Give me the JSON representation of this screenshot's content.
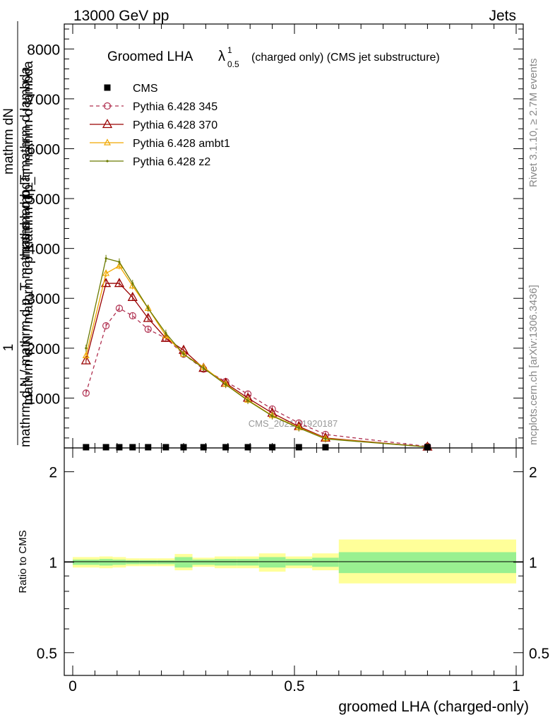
{
  "header": {
    "left": "13000 GeV pp",
    "right": "Jets"
  },
  "side_labels": {
    "rivet": "Rivet 3.1.10, ≥ 2.7M events",
    "mcplots": "mcplots.cern.ch [arXiv:1306.3436]"
  },
  "watermark": "CMS_2021_I1920187",
  "main_plot": {
    "title_main": "Groomed LHA",
    "title_symbol": "λ",
    "title_sup": "1",
    "title_sub": "0.5",
    "title_rest": "(charged only) (CMS jet substructure)",
    "ylabel_numerator": "mathrm dN",
    "ylabel_numerator_prefix": "1",
    "ylabel_denominator_top": "mathrm d p_T mathrm d lambda",
    "ylabel_denominator": "mathrm d N / mathrm d p_T mathrm d lambda",
    "ylabel_overlap": "mathrm d N / mathrm d p mathrm d p_T mathrm d lambda",
    "yticks": [
      "1000",
      "2000",
      "3000",
      "4000",
      "5000",
      "6000",
      "7000",
      "8000"
    ]
  },
  "ratio_plot": {
    "ylabel": "Ratio to CMS",
    "ytick_labels": [
      "0.5",
      "1",
      "2"
    ],
    "xtick_labels": [
      "0",
      "0.5",
      "1"
    ],
    "xlabel": "groomed LHA (charged-only)"
  },
  "colors": {
    "cms": "#000000",
    "p345": "#b03050",
    "p370": "#990000",
    "ambt1": "#f0a800",
    "z2": "#6b7a00",
    "band_inner": "#99f090",
    "band_outer": "#ffff99"
  },
  "chart_data": {
    "type": "line",
    "xlim": [
      0,
      1
    ],
    "ylim": [
      0,
      8500
    ],
    "ratio_ylim": [
      0.42,
      2.4
    ],
    "x": [
      0.03,
      0.075,
      0.105,
      0.135,
      0.17,
      0.21,
      0.25,
      0.295,
      0.345,
      0.395,
      0.45,
      0.51,
      0.57,
      0.8
    ],
    "bin_edges": [
      0.0,
      0.06,
      0.09,
      0.12,
      0.15,
      0.19,
      0.23,
      0.27,
      0.32,
      0.37,
      0.42,
      0.48,
      0.54,
      0.6,
      1.0
    ],
    "series": [
      {
        "name": "CMS",
        "values": [
          0,
          0,
          0,
          0,
          0,
          0,
          0,
          0,
          0,
          0,
          0,
          0,
          0,
          0
        ]
      },
      {
        "name": "Pythia 6.428 345",
        "values": [
          1100,
          2450,
          2800,
          2650,
          2380,
          2200,
          1880,
          1580,
          1330,
          1080,
          780,
          500,
          270,
          30
        ]
      },
      {
        "name": "Pythia 6.428 370",
        "values": [
          1750,
          3300,
          3300,
          3020,
          2600,
          2200,
          1960,
          1600,
          1300,
          1000,
          700,
          430,
          200,
          20
        ]
      },
      {
        "name": "Pythia 6.428 ambt1",
        "values": [
          1850,
          3500,
          3650,
          3250,
          2800,
          2250,
          1880,
          1620,
          1280,
          960,
          650,
          410,
          190,
          20
        ]
      },
      {
        "name": "Pythia 6.428 z2",
        "values": [
          2000,
          3800,
          3730,
          3300,
          2800,
          2300,
          1880,
          1600,
          1270,
          950,
          640,
          400,
          180,
          20
        ]
      }
    ],
    "ratio_band_inner": [
      [
        0.98,
        1.02
      ],
      [
        0.975,
        1.025
      ],
      [
        0.98,
        1.02
      ],
      [
        0.985,
        1.015
      ],
      [
        0.985,
        1.015
      ],
      [
        0.985,
        1.015
      ],
      [
        0.96,
        1.04
      ],
      [
        0.98,
        1.02
      ],
      [
        0.975,
        1.025
      ],
      [
        0.975,
        1.025
      ],
      [
        0.96,
        1.04
      ],
      [
        0.975,
        1.025
      ],
      [
        0.965,
        1.035
      ],
      [
        0.92,
        1.08
      ]
    ],
    "ratio_band_outer": [
      [
        0.96,
        1.04
      ],
      [
        0.955,
        1.045
      ],
      [
        0.96,
        1.04
      ],
      [
        0.97,
        1.03
      ],
      [
        0.97,
        1.03
      ],
      [
        0.97,
        1.03
      ],
      [
        0.94,
        1.065
      ],
      [
        0.965,
        1.035
      ],
      [
        0.955,
        1.045
      ],
      [
        0.955,
        1.045
      ],
      [
        0.93,
        1.07
      ],
      [
        0.955,
        1.045
      ],
      [
        0.94,
        1.07
      ],
      [
        0.85,
        1.19
      ]
    ]
  }
}
